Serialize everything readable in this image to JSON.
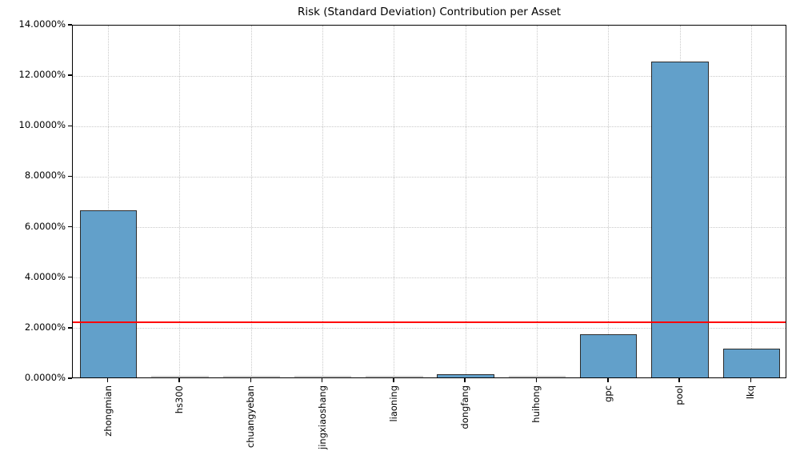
{
  "chart_data": {
    "type": "bar",
    "title": "Risk (Standard Deviation) Contribution per Asset",
    "categories": [
      "zhongmian",
      "hs300",
      "chuangyeban",
      "jingxiaoshang",
      "liaoning",
      "dongfang",
      "huihong",
      "gpc",
      "pool",
      "lkq"
    ],
    "values": [
      6.62,
      0.0,
      0.0,
      0.0,
      0.0,
      0.12,
      0.0,
      1.7,
      12.5,
      1.15
    ],
    "unit": "%",
    "xlabel": "",
    "ylabel": "",
    "ylim": [
      0,
      14
    ],
    "ytick_step": 2,
    "ytick_labels": [
      "0.0000%",
      "2.0000%",
      "4.0000%",
      "6.0000%",
      "8.0000%",
      "10.0000%",
      "12.0000%",
      "14.0000%"
    ],
    "threshold_line": {
      "value": 2.25,
      "color": "#ff0000"
    },
    "grid": {
      "style": "dotted",
      "color": "#c9c9c9",
      "x": true,
      "y": true
    },
    "bar_color": "#62a0ca",
    "bar_edge_color": "#2b2b2b",
    "near_zero_bar_color": "#cdcdcd",
    "bar_width_fraction": 0.8,
    "legend": "none",
    "background": "#ffffff"
  }
}
